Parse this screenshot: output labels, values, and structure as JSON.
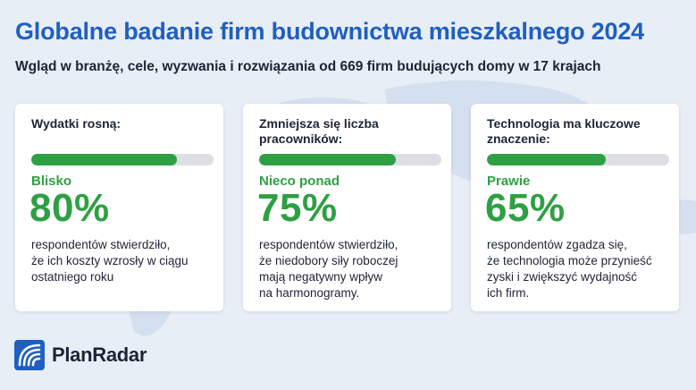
{
  "header": {
    "title": "Globalne badanie firm budownictwa mieszkalnego 2024",
    "subtitle": "Wgląd w branżę, cele, wyzwania i rozwiązania od 669 firm budujących domy w 17 krajach"
  },
  "cards": [
    {
      "title": "Wydatki rosną:",
      "progress_percent": 80,
      "qualifier": "Blisko",
      "value": "80%",
      "description": "respondentów stwierdziło,\nże ich koszty wzrosły w ciągu\nostatniego roku"
    },
    {
      "title": "Zmniejsza się liczba\npracowników:",
      "progress_percent": 75,
      "qualifier": "Nieco ponad",
      "value": "75%",
      "description": "respondentów stwierdziło,\nże niedobory siły roboczej\nmają negatywny wpływ\nna harmonogramy."
    },
    {
      "title": "Technologia ma kluczowe\nznaczenie:",
      "progress_percent": 65,
      "qualifier": "Prawie",
      "value": "65%",
      "description": "respondentów zgadza się,\nże technologia może przynieść\nzyski i zwiększyć wydajność\nich firm."
    }
  ],
  "brand": {
    "name": "PlanRadar",
    "logo_icon": "planradar-logo-icon"
  },
  "colors": {
    "title_blue": "#1f5fc1",
    "accent_green": "#2ea043",
    "text_dark": "#1c2535",
    "background": "#e8eef6",
    "bar_track": "#dcdfe3"
  }
}
